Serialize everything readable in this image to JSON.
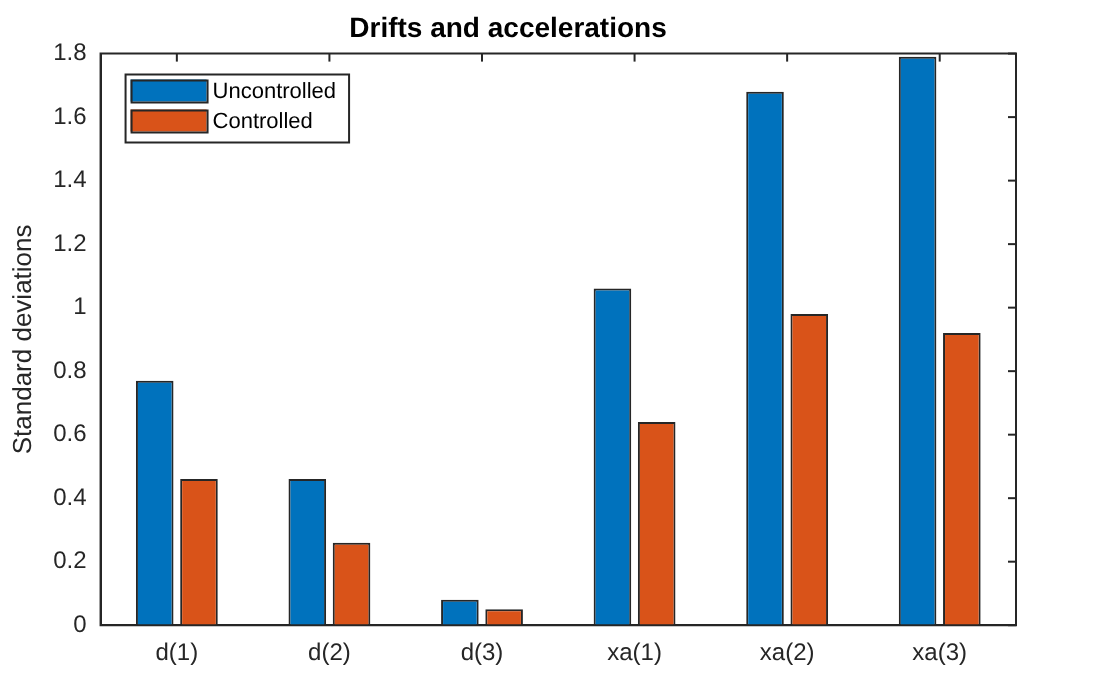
{
  "chart_data": {
    "type": "bar",
    "title": "Drifts and accelerations",
    "ylabel": "Standard deviations",
    "categories": [
      "d(1)",
      "d(2)",
      "d(3)",
      "xa(1)",
      "xa(2)",
      "xa(3)"
    ],
    "series": [
      {
        "name": "Uncontrolled",
        "color": "#0072bd",
        "values": [
          0.77,
          0.46,
          0.08,
          1.06,
          1.68,
          1.79
        ]
      },
      {
        "name": "Controlled",
        "color": "#d95319",
        "values": [
          0.46,
          0.26,
          0.05,
          0.64,
          0.98,
          0.92
        ]
      }
    ],
    "ylim": [
      0,
      1.8
    ],
    "yticks": [
      0,
      0.2,
      0.4,
      0.6,
      0.8,
      1,
      1.2,
      1.4,
      1.6,
      1.8
    ],
    "grid": false,
    "legend": "top left"
  }
}
